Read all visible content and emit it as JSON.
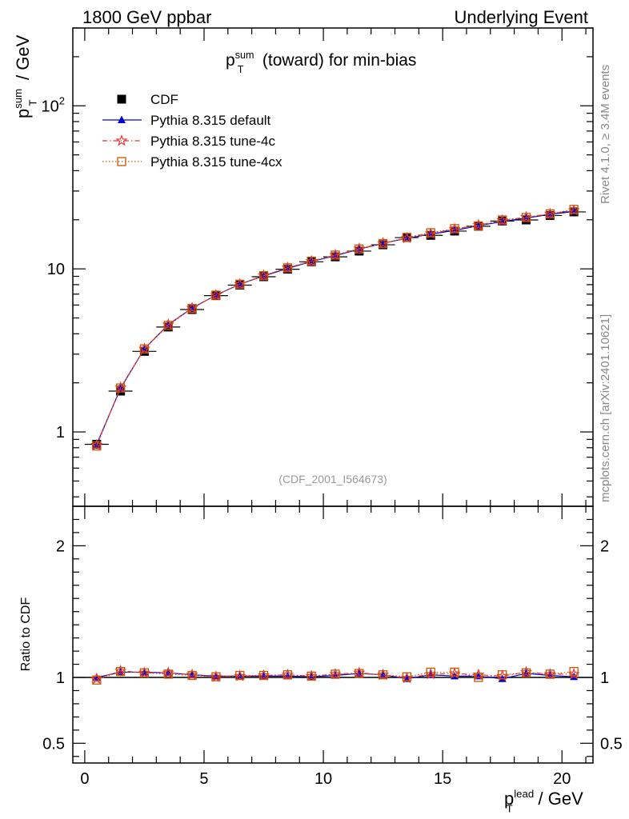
{
  "header": {
    "left": "1800 GeV ppbar",
    "right": "Underlying Event"
  },
  "side_labels": {
    "top": "Rivet 4.1.0, ≥ 3.4M events",
    "bottom": "mcplots.cern.ch [arXiv:2401.10621]"
  },
  "chart_data": [
    {
      "type": "line",
      "panel": "main",
      "title": {
        "base": "p",
        "sup": "sum",
        "sub": "T",
        "rest": " (toward) for min-bias"
      },
      "ylabel": {
        "base": "p",
        "sup": "sum",
        "sub": "T",
        "rest": " / GeV"
      },
      "yscale": "log",
      "ylim": [
        0.35,
        300
      ],
      "xlim": [
        -0.5,
        21.3
      ],
      "yticks": [
        {
          "value": 1,
          "label": "1"
        },
        {
          "value": 10,
          "label": "10"
        },
        {
          "value": 100,
          "label": "10",
          "sup": "2"
        }
      ],
      "watermark": "(CDF_2001_I564673)",
      "x": [
        0.5,
        1.5,
        2.5,
        3.5,
        4.5,
        5.5,
        6.5,
        7.5,
        8.5,
        9.5,
        10.5,
        11.5,
        12.5,
        13.5,
        14.5,
        15.5,
        16.5,
        17.5,
        18.5,
        19.5,
        20.5
      ],
      "series": [
        {
          "name": "CDF",
          "color": "#000000",
          "marker": "square",
          "dash": "none",
          "values": [
            0.84,
            1.78,
            3.12,
            4.4,
            5.63,
            6.85,
            7.95,
            8.95,
            9.95,
            11.05,
            11.85,
            12.85,
            14.05,
            15.55,
            16.05,
            17.05,
            18.25,
            19.65,
            19.95,
            21.25,
            22.35
          ]
        },
        {
          "name": "Pythia 8.315 default",
          "color": "#0000cc",
          "marker": "triangle",
          "dash": "none",
          "values": [
            0.84,
            1.85,
            3.24,
            4.55,
            5.75,
            6.9,
            8.05,
            9.05,
            10.05,
            11.1,
            12.05,
            13.2,
            14.35,
            15.4,
            16.35,
            17.2,
            18.4,
            19.5,
            20.5,
            21.6,
            22.5
          ]
        },
        {
          "name": "Pythia 8.315 tune-4c",
          "color": "#ee3333",
          "marker": "star",
          "dash": "6,3,1.5,3",
          "values": [
            0.83,
            1.87,
            3.23,
            4.55,
            5.75,
            6.9,
            8.05,
            9.1,
            10.15,
            11.15,
            12.15,
            13.3,
            14.35,
            15.45,
            16.45,
            17.55,
            18.55,
            19.8,
            20.75,
            21.75,
            22.85
          ]
        },
        {
          "name": "Pythia 8.315 tune-4cx",
          "color": "#cc5500",
          "marker": "opensquare",
          "dash": "1.5,2.5",
          "values": [
            0.82,
            1.86,
            3.23,
            4.5,
            5.72,
            6.9,
            8.05,
            9.08,
            10.15,
            11.15,
            12.15,
            13.25,
            14.3,
            15.6,
            16.65,
            17.65,
            18.35,
            19.95,
            20.65,
            21.75,
            23.15
          ]
        }
      ]
    },
    {
      "type": "line",
      "panel": "ratio",
      "ylabel": "Ratio to CDF",
      "xlabel": {
        "base": "p",
        "sup": "lead",
        "sub": "T",
        "rest": " / GeV"
      },
      "ylim": [
        0.35,
        2.3
      ],
      "xlim": [
        -0.5,
        21.3
      ],
      "yticks": [
        {
          "value": 0.5,
          "label": "0.5"
        },
        {
          "value": 1,
          "label": "1"
        },
        {
          "value": 2,
          "label": "2"
        }
      ],
      "xticks": [
        {
          "value": 0,
          "label": "0"
        },
        {
          "value": 5,
          "label": "5"
        },
        {
          "value": 10,
          "label": "10"
        },
        {
          "value": 15,
          "label": "15"
        },
        {
          "value": 20,
          "label": "20"
        }
      ],
      "x": [
        0.5,
        1.5,
        2.5,
        3.5,
        4.5,
        5.5,
        6.5,
        7.5,
        8.5,
        9.5,
        10.5,
        11.5,
        12.5,
        13.5,
        14.5,
        15.5,
        16.5,
        17.5,
        18.5,
        19.5,
        20.5
      ],
      "reference": 1,
      "series": [
        {
          "name": "Pythia 8.315 default",
          "color": "#0000cc",
          "marker": "triangle",
          "dash": "none",
          "values": [
            1.0,
            1.04,
            1.04,
            1.035,
            1.02,
            1.01,
            1.01,
            1.01,
            1.01,
            1.005,
            1.015,
            1.03,
            1.02,
            0.99,
            1.02,
            1.01,
            1.01,
            0.99,
            1.03,
            1.015,
            1.005
          ]
        },
        {
          "name": "Pythia 8.315 tune-4c",
          "color": "#ee3333",
          "marker": "star",
          "dash": "6,3,1.5,3",
          "values": [
            0.99,
            1.05,
            1.035,
            1.035,
            1.02,
            1.005,
            1.01,
            1.015,
            1.02,
            1.01,
            1.025,
            1.035,
            1.02,
            0.995,
            1.025,
            1.03,
            1.02,
            1.01,
            1.04,
            1.025,
            1.025
          ]
        },
        {
          "name": "Pythia 8.315 tune-4cx",
          "color": "#cc5500",
          "marker": "opensquare",
          "dash": "1.5,2.5",
          "values": [
            0.98,
            1.045,
            1.035,
            1.025,
            1.015,
            1.005,
            1.015,
            1.015,
            1.02,
            1.01,
            1.025,
            1.03,
            1.02,
            1.005,
            1.04,
            1.04,
            1.0,
            1.02,
            1.035,
            1.025,
            1.045
          ]
        }
      ]
    }
  ]
}
